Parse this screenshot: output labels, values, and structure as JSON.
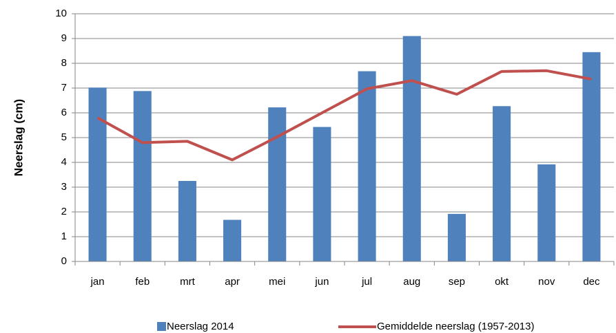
{
  "chart_data": {
    "type": "bar",
    "ylabel": "Neerslag (cm)",
    "categories": [
      "jan",
      "feb",
      "mrt",
      "apr",
      "mei",
      "jun",
      "jul",
      "aug",
      "sep",
      "okt",
      "nov",
      "dec"
    ],
    "series": [
      {
        "name": "Neerslag 2014",
        "type": "bar",
        "color": "#4f81bd",
        "values": [
          7.02,
          6.88,
          3.25,
          1.68,
          6.22,
          5.43,
          7.68,
          9.1,
          1.92,
          6.27,
          3.92,
          8.45
        ]
      },
      {
        "name": "Gemiddelde neerslag (1957-2013)",
        "type": "line",
        "color": "#c0504d",
        "values": [
          5.8,
          4.8,
          4.85,
          4.1,
          5.03,
          6.0,
          6.97,
          7.3,
          6.75,
          7.67,
          7.7,
          7.36
        ]
      }
    ],
    "ylim": [
      0,
      10
    ],
    "yticks": [
      0,
      1,
      2,
      3,
      4,
      5,
      6,
      7,
      8,
      9,
      10
    ],
    "grid": true,
    "legend": "bottom"
  }
}
